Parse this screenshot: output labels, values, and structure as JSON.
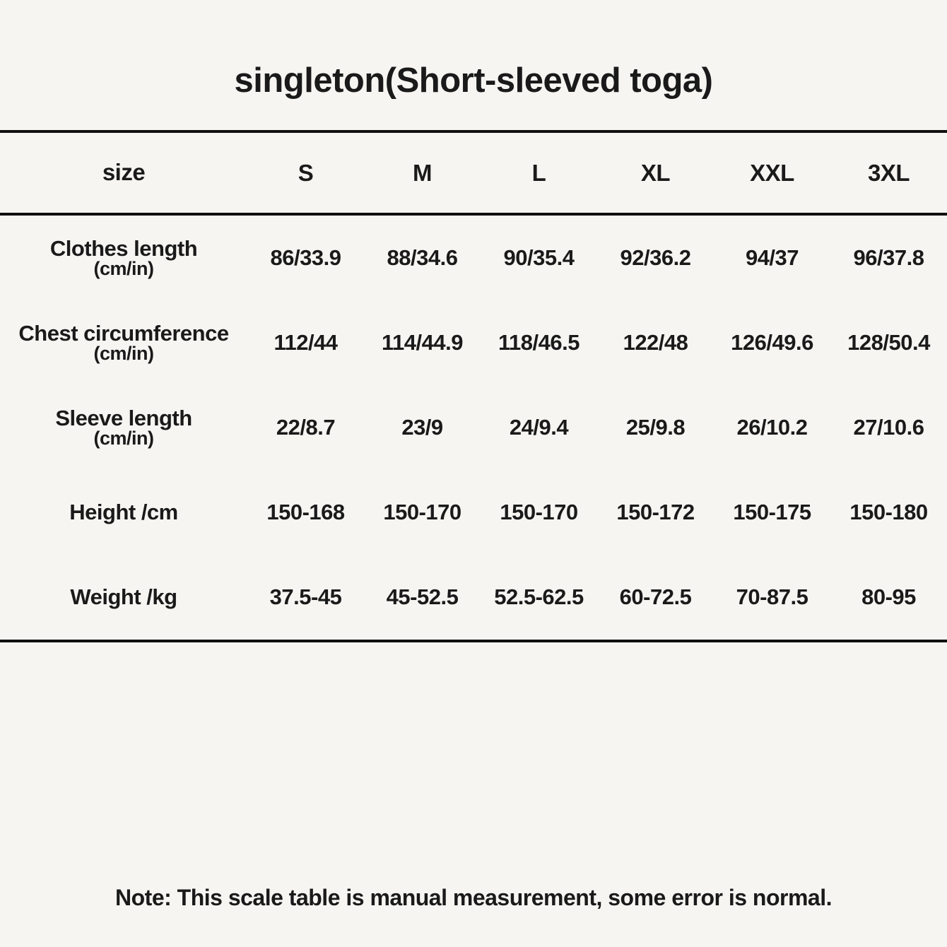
{
  "title": "singleton(Short-sleeved toga)",
  "note": "Note: This scale table is manual measurement, some error is normal.",
  "colors": {
    "background": "#f6f5f2",
    "text": "#1a1a1a",
    "rule": "#101010"
  },
  "chart_data": {
    "type": "table",
    "title": "singleton(Short-sleeved toga)",
    "columns": [
      "size",
      "S",
      "M",
      "L",
      "XL",
      "XXL",
      "3XL"
    ],
    "rows": [
      {
        "label": "Clothes length",
        "unit": "(cm/in)",
        "values": [
          "86/33.9",
          "88/34.6",
          "90/35.4",
          "92/36.2",
          "94/37",
          "96/37.8"
        ]
      },
      {
        "label": "Chest circumference",
        "unit": "(cm/in)",
        "values": [
          "112/44",
          "114/44.9",
          "118/46.5",
          "122/48",
          "126/49.6",
          "128/50.4"
        ]
      },
      {
        "label": "Sleeve length",
        "unit": "(cm/in)",
        "values": [
          "22/8.7",
          "23/9",
          "24/9.4",
          "25/9.8",
          "26/10.2",
          "27/10.6"
        ]
      },
      {
        "label": "Height /cm",
        "unit": "",
        "values": [
          "150-168",
          "150-170",
          "150-170",
          "150-172",
          "150-175",
          "150-180"
        ]
      },
      {
        "label": "Weight /kg",
        "unit": "",
        "values": [
          "37.5-45",
          "45-52.5",
          "52.5-62.5",
          "60-72.5",
          "70-87.5",
          "80-95"
        ]
      }
    ]
  }
}
